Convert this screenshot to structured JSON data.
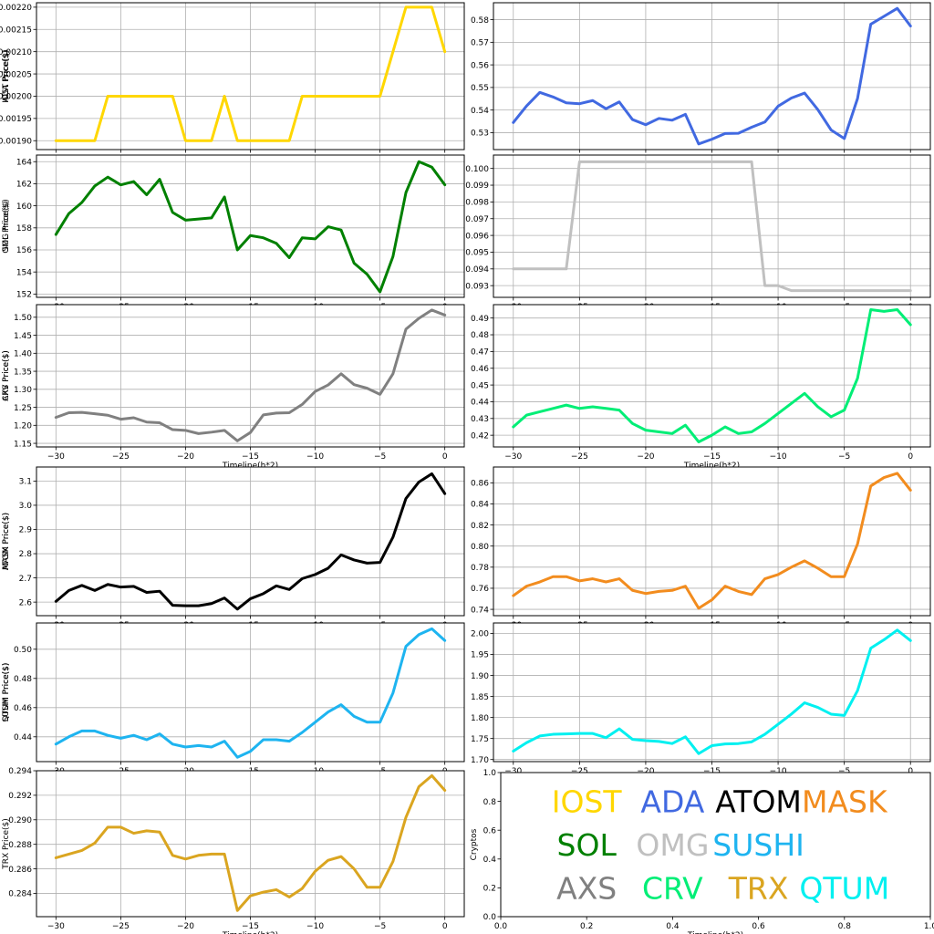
{
  "chart_data": [
    {
      "type": "line",
      "panel": "iost",
      "ylabel": "IOST Price($)",
      "xlabel": "",
      "color": "#FFD700",
      "x": [
        -30,
        -29,
        -28,
        -27,
        -26,
        -25,
        -24,
        -23,
        -22,
        -21,
        -20,
        -19,
        -18,
        -17,
        -16,
        -15,
        -14,
        -13,
        -12,
        -11,
        -10,
        -9,
        -8,
        -7,
        -6,
        -5,
        -4,
        -3,
        -2,
        -1,
        0
      ],
      "values": [
        0.0019,
        0.0019,
        0.0019,
        0.0019,
        0.002,
        0.002,
        0.002,
        0.002,
        0.002,
        0.002,
        0.0019,
        0.0019,
        0.0019,
        0.002,
        0.0019,
        0.0019,
        0.0019,
        0.0019,
        0.0019,
        0.002,
        0.002,
        0.002,
        0.002,
        0.002,
        0.002,
        0.002,
        0.0021,
        0.0022,
        0.0022,
        0.0022,
        0.0021
      ],
      "xlim": [
        -31.5,
        1.5
      ],
      "ylim": [
        0.00188,
        0.00221
      ],
      "xticks": [
        -30,
        -25,
        -20,
        -15,
        -10,
        -5,
        0
      ],
      "xtick_labels": [
        "−30",
        "−25",
        "−20",
        "−15",
        "−10",
        "−5",
        "0"
      ],
      "yticks": [
        0.0019,
        0.00195,
        0.002,
        0.00205,
        0.0021,
        0.00215,
        0.0022
      ],
      "ytick_labels": [
        "0.00190",
        "0.00195",
        "0.00200",
        "0.00205",
        "0.00210",
        "0.00215",
        "0.00220"
      ]
    },
    {
      "type": "line",
      "panel": "ada",
      "ylabel": "ADA  Price($)",
      "xlabel": "",
      "color": "#4169E1",
      "x": [
        -30,
        -29,
        -28,
        -27,
        -26,
        -25,
        -24,
        -23,
        -22,
        -21,
        -20,
        -19,
        -18,
        -17,
        -16,
        -15,
        -14,
        -13,
        -12,
        -11,
        -10,
        -9,
        -8,
        -7,
        -6,
        -5,
        -4,
        -3,
        -2,
        -1,
        0
      ],
      "values": [
        0.5345,
        0.5418,
        0.5478,
        0.5458,
        0.5432,
        0.5428,
        0.5442,
        0.5406,
        0.5436,
        0.5358,
        0.5335,
        0.5363,
        0.5355,
        0.5381,
        0.525,
        0.5271,
        0.5296,
        0.5297,
        0.5324,
        0.5347,
        0.5417,
        0.5453,
        0.5475,
        0.5402,
        0.5312,
        0.5274,
        0.5451,
        0.578,
        0.5815,
        0.585,
        0.5772
      ],
      "xlim": [
        -31.5,
        1.5
      ],
      "ylim": [
        0.5225,
        0.5875
      ],
      "xticks": [
        -30,
        -25,
        -20,
        -15,
        -10,
        -5,
        0
      ],
      "xtick_labels": [
        "−30",
        "−25",
        "−20",
        "−15",
        "−10",
        "−5",
        "0"
      ],
      "yticks": [
        0.53,
        0.54,
        0.55,
        0.56,
        0.57,
        0.58
      ],
      "ytick_labels": [
        "0.53",
        "0.54",
        "0.55",
        "0.56",
        "0.57",
        "0.58"
      ]
    },
    {
      "type": "line",
      "panel": "sol",
      "ylabel": "SOL Price($)",
      "xlabel": "",
      "color": "#008000",
      "x": [
        -30,
        -29,
        -28,
        -27,
        -26,
        -25,
        -24,
        -23,
        -22,
        -21,
        -20,
        -19,
        -18,
        -17,
        -16,
        -15,
        -14,
        -13,
        -12,
        -11,
        -10,
        -9,
        -8,
        -7,
        -6,
        -5,
        -4,
        -3,
        -2,
        -1,
        0
      ],
      "values": [
        157.4,
        159.3,
        160.3,
        161.8,
        162.6,
        161.9,
        162.2,
        161.0,
        162.4,
        159.4,
        158.7,
        158.8,
        158.9,
        160.8,
        156.0,
        157.3,
        157.1,
        156.6,
        155.3,
        157.1,
        157.0,
        158.1,
        157.8,
        154.8,
        153.8,
        152.2,
        155.4,
        161.2,
        164.0,
        163.5,
        161.9
      ],
      "xlim": [
        -31.5,
        1.5
      ],
      "ylim": [
        151.7,
        164.6
      ],
      "xticks": [
        -30,
        -25,
        -20,
        -15,
        -10,
        -5,
        0
      ],
      "xtick_labels": [
        "−30",
        "−25",
        "−20",
        "−15",
        "−10",
        "−5",
        "0"
      ],
      "yticks": [
        152,
        154,
        156,
        158,
        160,
        162,
        164
      ],
      "ytick_labels": [
        "152",
        "154",
        "156",
        "158",
        "160",
        "162",
        "164"
      ]
    },
    {
      "type": "line",
      "panel": "omg",
      "ylabel": "OMG  Price($)",
      "xlabel": "",
      "color": "#C0C0C0",
      "x": [
        -30,
        -29,
        -28,
        -27,
        -26,
        -25,
        -24,
        -23,
        -22,
        -21,
        -20,
        -19,
        -18,
        -17,
        -16,
        -15,
        -14,
        -13,
        -12,
        -11,
        -10,
        -9,
        -8,
        -7,
        -6,
        -5,
        -4,
        -3,
        -2,
        -1,
        0
      ],
      "values": [
        0.094,
        0.094,
        0.094,
        0.094,
        0.094,
        0.1004,
        0.1004,
        0.1004,
        0.1004,
        0.1004,
        0.1004,
        0.1004,
        0.1004,
        0.1004,
        0.1004,
        0.1004,
        0.1004,
        0.1004,
        0.1004,
        0.093,
        0.093,
        0.0927,
        0.0927,
        0.0927,
        0.0927,
        0.0927,
        0.0927,
        0.0927,
        0.0927,
        0.0927,
        0.0927
      ],
      "xlim": [
        -31.5,
        1.5
      ],
      "ylim": [
        0.0923,
        0.1008
      ],
      "xticks": [
        -30,
        -25,
        -20,
        -15,
        -10,
        -5,
        0
      ],
      "xtick_labels": [
        "−30",
        "−25",
        "−20",
        "−15",
        "−10",
        "−5",
        "0"
      ],
      "yticks": [
        0.093,
        0.094,
        0.095,
        0.096,
        0.097,
        0.098,
        0.099,
        0.1
      ],
      "ytick_labels": [
        "0.093",
        "0.094",
        "0.095",
        "0.096",
        "0.097",
        "0.098",
        "0.099",
        "0.100"
      ]
    },
    {
      "type": "line",
      "panel": "axs",
      "ylabel": "AXS Price($)",
      "xlabel": "Timeline(h*2)",
      "color": "#808080",
      "x": [
        -30,
        -29,
        -28,
        -27,
        -26,
        -25,
        -24,
        -23,
        -22,
        -21,
        -20,
        -19,
        -18,
        -17,
        -16,
        -15,
        -14,
        -13,
        -12,
        -11,
        -10,
        -9,
        -8,
        -7,
        -6,
        -5,
        -4,
        -3,
        -2,
        -1,
        0
      ],
      "values": [
        1.222,
        1.235,
        1.236,
        1.232,
        1.228,
        1.217,
        1.221,
        1.209,
        1.207,
        1.188,
        1.186,
        1.177,
        1.181,
        1.186,
        1.157,
        1.18,
        1.229,
        1.234,
        1.235,
        1.258,
        1.294,
        1.312,
        1.343,
        1.313,
        1.303,
        1.286,
        1.343,
        1.467,
        1.497,
        1.52,
        1.506
      ],
      "xlim": [
        -31.5,
        1.5
      ],
      "ylim": [
        1.14,
        1.535
      ],
      "xticks": [
        -30,
        -25,
        -20,
        -15,
        -10,
        -5,
        0
      ],
      "xtick_labels": [
        "−30",
        "−25",
        "−20",
        "−15",
        "−10",
        "−5",
        "0"
      ],
      "yticks": [
        1.15,
        1.2,
        1.25,
        1.3,
        1.35,
        1.4,
        1.45,
        1.5
      ],
      "ytick_labels": [
        "1.15",
        "1.20",
        "1.25",
        "1.30",
        "1.35",
        "1.40",
        "1.45",
        "1.50"
      ]
    },
    {
      "type": "line",
      "panel": "crv",
      "ylabel": "CRV  Price($)",
      "xlabel": "Timeline(h*2)",
      "color": "#00EE76",
      "x": [
        -30,
        -29,
        -28,
        -27,
        -26,
        -25,
        -24,
        -23,
        -22,
        -21,
        -20,
        -19,
        -18,
        -17,
        -16,
        -15,
        -14,
        -13,
        -12,
        -11,
        -10,
        -9,
        -8,
        -7,
        -6,
        -5,
        -4,
        -3,
        -2,
        -1,
        0
      ],
      "values": [
        0.425,
        0.432,
        0.434,
        0.436,
        0.438,
        0.436,
        0.437,
        0.436,
        0.435,
        0.427,
        0.423,
        0.422,
        0.421,
        0.426,
        0.416,
        0.42,
        0.425,
        0.421,
        0.422,
        0.427,
        0.433,
        0.439,
        0.445,
        0.437,
        0.431,
        0.435,
        0.454,
        0.495,
        0.494,
        0.495,
        0.486
      ],
      "xlim": [
        -31.5,
        1.5
      ],
      "ylim": [
        0.413,
        0.498
      ],
      "xticks": [
        -30,
        -25,
        -20,
        -15,
        -10,
        -5,
        0
      ],
      "xtick_labels": [
        "−30",
        "−25",
        "−20",
        "−15",
        "−10",
        "−5",
        "0"
      ],
      "yticks": [
        0.42,
        0.43,
        0.44,
        0.45,
        0.46,
        0.47,
        0.48,
        0.49
      ],
      "ytick_labels": [
        "0.42",
        "0.43",
        "0.44",
        "0.45",
        "0.46",
        "0.47",
        "0.48",
        "0.49"
      ]
    },
    {
      "type": "line",
      "panel": "atom",
      "ylabel": "ATOM  Price($)",
      "xlabel": "",
      "color": "#000000",
      "x": [
        -30,
        -29,
        -28,
        -27,
        -26,
        -25,
        -24,
        -23,
        -22,
        -21,
        -20,
        -19,
        -18,
        -17,
        -16,
        -15,
        -14,
        -13,
        -12,
        -11,
        -10,
        -9,
        -8,
        -7,
        -6,
        -5,
        -4,
        -3,
        -2,
        -1,
        0
      ],
      "values": [
        2.603,
        2.648,
        2.669,
        2.648,
        2.673,
        2.662,
        2.665,
        2.64,
        2.645,
        2.587,
        2.585,
        2.585,
        2.594,
        2.617,
        2.571,
        2.614,
        2.635,
        2.667,
        2.652,
        2.697,
        2.714,
        2.74,
        2.795,
        2.774,
        2.761,
        2.764,
        2.868,
        3.028,
        3.096,
        3.13,
        3.048
      ],
      "xlim": [
        -31.5,
        1.5
      ],
      "ylim": [
        2.544,
        3.158
      ],
      "xticks": [
        -30,
        -25,
        -20,
        -15,
        -10,
        -5,
        0
      ],
      "xtick_labels": [
        "−30",
        "−25",
        "−20",
        "−15",
        "−10",
        "−5",
        "0"
      ],
      "yticks": [
        2.6,
        2.7,
        2.8,
        2.9,
        3.0,
        3.1
      ],
      "ytick_labels": [
        "2.6",
        "2.7",
        "2.8",
        "2.9",
        "3.0",
        "3.1"
      ]
    },
    {
      "type": "line",
      "panel": "mask",
      "ylabel": "MASK  Price($)",
      "xlabel": "",
      "color": "#F28C1E",
      "x": [
        -30,
        -29,
        -28,
        -27,
        -26,
        -25,
        -24,
        -23,
        -22,
        -21,
        -20,
        -19,
        -18,
        -17,
        -16,
        -15,
        -14,
        -13,
        -12,
        -11,
        -10,
        -9,
        -8,
        -7,
        -6,
        -5,
        -4,
        -3,
        -2,
        -1,
        0
      ],
      "values": [
        0.753,
        0.762,
        0.766,
        0.771,
        0.771,
        0.767,
        0.769,
        0.766,
        0.769,
        0.758,
        0.755,
        0.757,
        0.758,
        0.762,
        0.741,
        0.749,
        0.762,
        0.757,
        0.754,
        0.769,
        0.773,
        0.78,
        0.786,
        0.779,
        0.771,
        0.771,
        0.802,
        0.857,
        0.865,
        0.869,
        0.853
      ],
      "xlim": [
        -31.5,
        1.5
      ],
      "ylim": [
        0.734,
        0.875
      ],
      "xticks": [
        -30,
        -25,
        -20,
        -15,
        -10,
        -5,
        0
      ],
      "xtick_labels": [
        "−30",
        "−25",
        "−20",
        "−15",
        "−10",
        "−5",
        "0"
      ],
      "yticks": [
        0.74,
        0.76,
        0.78,
        0.8,
        0.82,
        0.84,
        0.86
      ],
      "ytick_labels": [
        "0.74",
        "0.76",
        "0.78",
        "0.80",
        "0.82",
        "0.84",
        "0.86"
      ]
    },
    {
      "type": "line",
      "panel": "sushi",
      "ylabel": "SUSHI  Price($)",
      "xlabel": "",
      "color": "#1EB4F0",
      "x": [
        -30,
        -29,
        -28,
        -27,
        -26,
        -25,
        -24,
        -23,
        -22,
        -21,
        -20,
        -19,
        -18,
        -17,
        -16,
        -15,
        -14,
        -13,
        -12,
        -11,
        -10,
        -9,
        -8,
        -7,
        -6,
        -5,
        -4,
        -3,
        -2,
        -1,
        0
      ],
      "values": [
        0.435,
        0.44,
        0.444,
        0.444,
        0.441,
        0.439,
        0.441,
        0.438,
        0.442,
        0.435,
        0.433,
        0.434,
        0.433,
        0.437,
        0.426,
        0.43,
        0.438,
        0.438,
        0.437,
        0.443,
        0.45,
        0.457,
        0.462,
        0.454,
        0.45,
        0.45,
        0.47,
        0.502,
        0.51,
        0.514,
        0.506
      ],
      "xlim": [
        -31.5,
        1.5
      ],
      "ylim": [
        0.423,
        0.518
      ],
      "xticks": [
        -30,
        -25,
        -20,
        -15,
        -10,
        -5,
        0
      ],
      "xtick_labels": [
        "−30",
        "−25",
        "−20",
        "−15",
        "−10",
        "−5",
        "0"
      ],
      "yticks": [
        0.44,
        0.46,
        0.48,
        0.5
      ],
      "ytick_labels": [
        "0.44",
        "0.46",
        "0.48",
        "0.50"
      ]
    },
    {
      "type": "line",
      "panel": "qtum",
      "ylabel": "QTUM Price($)",
      "xlabel": "",
      "color": "#00F0F0",
      "x": [
        -30,
        -29,
        -28,
        -27,
        -26,
        -25,
        -24,
        -23,
        -22,
        -21,
        -20,
        -19,
        -18,
        -17,
        -16,
        -15,
        -14,
        -13,
        -12,
        -11,
        -10,
        -9,
        -8,
        -7,
        -6,
        -5,
        -4,
        -3,
        -2,
        -1,
        0
      ],
      "values": [
        1.72,
        1.74,
        1.756,
        1.76,
        1.761,
        1.762,
        1.762,
        1.752,
        1.773,
        1.748,
        1.745,
        1.743,
        1.738,
        1.754,
        1.714,
        1.733,
        1.737,
        1.738,
        1.742,
        1.76,
        1.784,
        1.808,
        1.835,
        1.824,
        1.808,
        1.805,
        1.864,
        1.965,
        1.985,
        2.008,
        1.983
      ],
      "xlim": [
        -31.5,
        1.5
      ],
      "ylim": [
        1.695,
        2.025
      ],
      "xticks": [
        -30,
        -25,
        -20,
        -15,
        -10,
        -5,
        0
      ],
      "xtick_labels": [
        "−30",
        "−25",
        "−20",
        "−15",
        "−10",
        "−5",
        "0"
      ],
      "yticks": [
        1.7,
        1.75,
        1.8,
        1.85,
        1.9,
        1.95,
        2.0
      ],
      "ytick_labels": [
        "1.70",
        "1.75",
        "1.80",
        "1.85",
        "1.90",
        "1.95",
        "2.00"
      ]
    },
    {
      "type": "line",
      "panel": "trx",
      "ylabel": "TRX Price($)",
      "xlabel": "Timeline(h*2)",
      "color": "#DAA520",
      "x": [
        -30,
        -29,
        -28,
        -27,
        -26,
        -25,
        -24,
        -23,
        -22,
        -21,
        -20,
        -19,
        -18,
        -17,
        -16,
        -15,
        -14,
        -13,
        -12,
        -11,
        -10,
        -9,
        -8,
        -7,
        -6,
        -5,
        -4,
        -3,
        -2,
        -1,
        0
      ],
      "values": [
        0.2869,
        0.2872,
        0.2875,
        0.2881,
        0.2894,
        0.2894,
        0.2889,
        0.2891,
        0.289,
        0.2871,
        0.2868,
        0.2871,
        0.2872,
        0.2872,
        0.2826,
        0.2838,
        0.2841,
        0.2843,
        0.2837,
        0.2844,
        0.2858,
        0.2867,
        0.287,
        0.286,
        0.2845,
        0.2845,
        0.2866,
        0.2902,
        0.2927,
        0.2936,
        0.2924
      ],
      "xlim": [
        -31.5,
        1.5
      ],
      "ylim": [
        0.2821,
        0.294
      ],
      "xticks": [
        -30,
        -25,
        -20,
        -15,
        -10,
        -5,
        0
      ],
      "xtick_labels": [
        "−30",
        "−25",
        "−20",
        "−15",
        "−10",
        "−5",
        "0"
      ],
      "yticks": [
        0.284,
        0.286,
        0.288,
        0.29,
        0.292,
        0.294
      ],
      "ytick_labels": [
        "0.284",
        "0.286",
        "0.288",
        "0.290",
        "0.292",
        "0.294"
      ]
    }
  ],
  "legend": {
    "ylabel": "Cryptos",
    "xlabel": "Timeline(h*2)",
    "xlim": [
      0,
      1
    ],
    "ylim": [
      0,
      1
    ],
    "xticks": [
      0,
      0.2,
      0.4,
      0.6,
      0.8,
      1.0
    ],
    "xtick_labels": [
      "0.0",
      "0.2",
      "0.4",
      "0.6",
      "0.8",
      "1.0"
    ],
    "yticks": [
      0,
      0.2,
      0.4,
      0.6,
      0.8,
      1.0
    ],
    "ytick_labels": [
      "0.0",
      "0.2",
      "0.4",
      "0.6",
      "0.8",
      "1.0"
    ],
    "entries": [
      {
        "label": "IOST",
        "color": "#FFD700"
      },
      {
        "label": "ADA",
        "color": "#4169E1"
      },
      {
        "label": "ATOM",
        "color": "#000000"
      },
      {
        "label": "MASK",
        "color": "#F28C1E"
      },
      {
        "label": "SOL",
        "color": "#008000"
      },
      {
        "label": "OMG",
        "color": "#C0C0C0"
      },
      {
        "label": "SUSHI",
        "color": "#1EB4F0"
      },
      {
        "label": "AXS",
        "color": "#808080"
      },
      {
        "label": "CRV",
        "color": "#00EE76"
      },
      {
        "label": "TRX",
        "color": "#DAA520"
      },
      {
        "label": "QTUM",
        "color": "#00F0F0"
      }
    ]
  }
}
